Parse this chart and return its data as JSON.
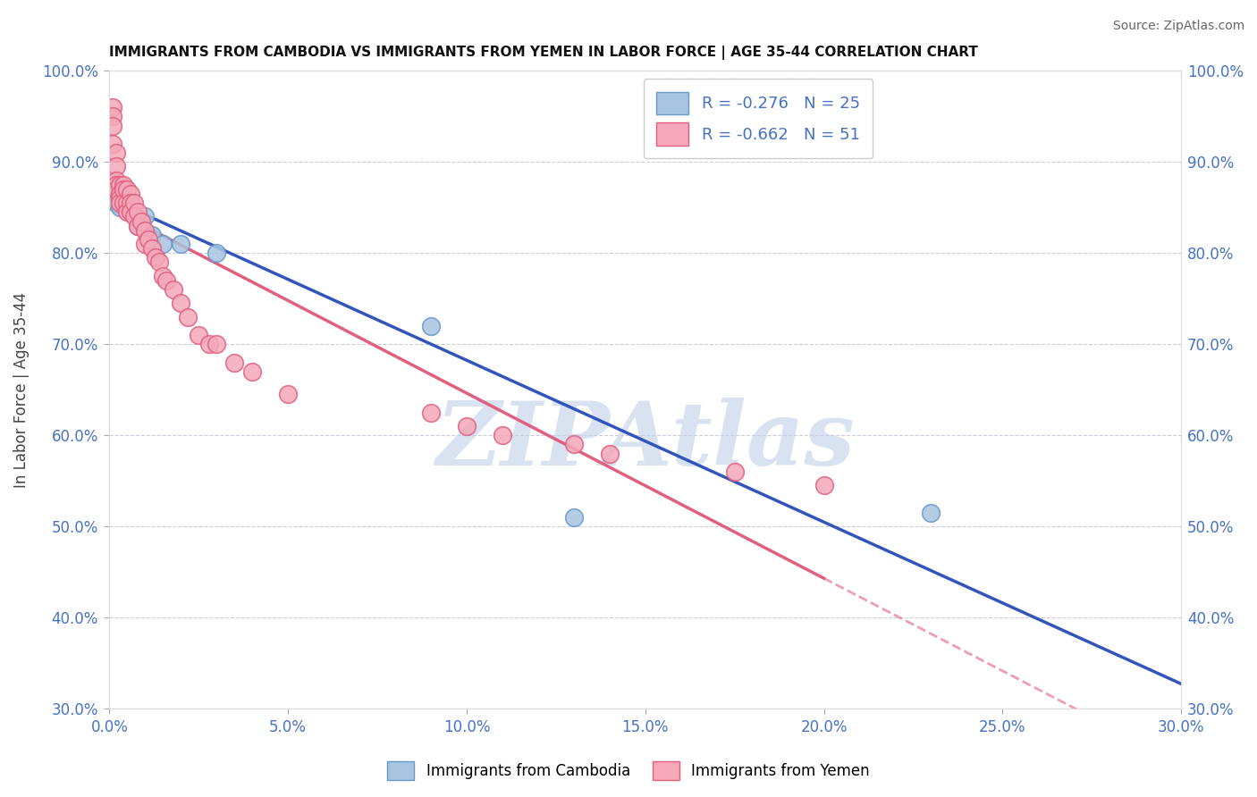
{
  "title": "IMMIGRANTS FROM CAMBODIA VS IMMIGRANTS FROM YEMEN IN LABOR FORCE | AGE 35-44 CORRELATION CHART",
  "source": "Source: ZipAtlas.com",
  "ylabel": "In Labor Force | Age 35-44",
  "xlim": [
    0.0,
    0.3
  ],
  "ylim": [
    0.3,
    1.0
  ],
  "ytick_vals": [
    0.3,
    0.4,
    0.5,
    0.6,
    0.7,
    0.8,
    0.9,
    1.0
  ],
  "xtick_vals": [
    0.0,
    0.05,
    0.1,
    0.15,
    0.2,
    0.25,
    0.3
  ],
  "ytick_labels": [
    "30.0%",
    "40.0%",
    "50.0%",
    "60.0%",
    "70.0%",
    "80.0%",
    "90.0%",
    "100.0%"
  ],
  "xtick_labels": [
    "0.0%",
    "5.0%",
    "10.0%",
    "15.0%",
    "20.0%",
    "25.0%",
    "30.0%"
  ],
  "cambodia_color": "#a8c4e0",
  "cambodia_edge": "#6699cc",
  "yemen_color": "#f4a8b8",
  "yemen_edge": "#e06080",
  "line_blue": "#3355bb",
  "line_pink": "#e06080",
  "R_cambodia": -0.276,
  "N_cambodia": 25,
  "R_yemen": -0.662,
  "N_yemen": 51,
  "watermark": "ZIPAtlas",
  "watermark_color": "#c0d0e8",
  "cambodia_x": [
    0.001,
    0.001,
    0.001,
    0.002,
    0.002,
    0.002,
    0.002,
    0.003,
    0.003,
    0.003,
    0.004,
    0.004,
    0.005,
    0.005,
    0.006,
    0.007,
    0.008,
    0.01,
    0.012,
    0.015,
    0.02,
    0.03,
    0.09,
    0.13,
    0.23
  ],
  "cambodia_y": [
    0.875,
    0.87,
    0.86,
    0.875,
    0.87,
    0.865,
    0.855,
    0.87,
    0.865,
    0.85,
    0.865,
    0.855,
    0.86,
    0.855,
    0.85,
    0.845,
    0.83,
    0.84,
    0.82,
    0.81,
    0.81,
    0.8,
    0.72,
    0.51,
    0.515
  ],
  "yemen_x": [
    0.001,
    0.001,
    0.001,
    0.001,
    0.002,
    0.002,
    0.002,
    0.002,
    0.002,
    0.003,
    0.003,
    0.003,
    0.003,
    0.004,
    0.004,
    0.004,
    0.005,
    0.005,
    0.005,
    0.006,
    0.006,
    0.006,
    0.007,
    0.007,
    0.008,
    0.008,
    0.009,
    0.01,
    0.01,
    0.011,
    0.012,
    0.013,
    0.014,
    0.015,
    0.016,
    0.018,
    0.02,
    0.022,
    0.025,
    0.028,
    0.03,
    0.035,
    0.04,
    0.05,
    0.09,
    0.1,
    0.11,
    0.13,
    0.14,
    0.175,
    0.2
  ],
  "yemen_y": [
    0.96,
    0.95,
    0.94,
    0.92,
    0.91,
    0.895,
    0.88,
    0.875,
    0.87,
    0.875,
    0.865,
    0.86,
    0.855,
    0.875,
    0.87,
    0.855,
    0.87,
    0.855,
    0.845,
    0.865,
    0.855,
    0.845,
    0.855,
    0.84,
    0.845,
    0.83,
    0.835,
    0.825,
    0.81,
    0.815,
    0.805,
    0.795,
    0.79,
    0.775,
    0.77,
    0.76,
    0.745,
    0.73,
    0.71,
    0.7,
    0.7,
    0.68,
    0.67,
    0.645,
    0.625,
    0.61,
    0.6,
    0.59,
    0.58,
    0.56,
    0.545
  ]
}
